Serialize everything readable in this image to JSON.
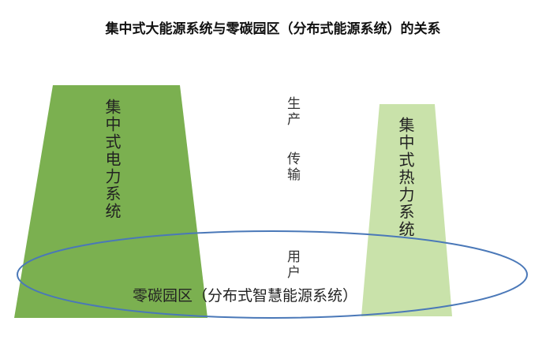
{
  "title": "集中式大能源系统与零碳园区（分布式能源系统）的关系",
  "left_block": {
    "label": "集中式电力系统",
    "color": "#7bb050"
  },
  "right_block": {
    "label": "集中式热力系统",
    "color": "#c9e2aa"
  },
  "middle": {
    "production": "生产",
    "transmission": "传输",
    "user": "用户"
  },
  "ellipse": {
    "label": "零碳园区（分布式智慧能源系统）",
    "color": "#4a78b8"
  }
}
